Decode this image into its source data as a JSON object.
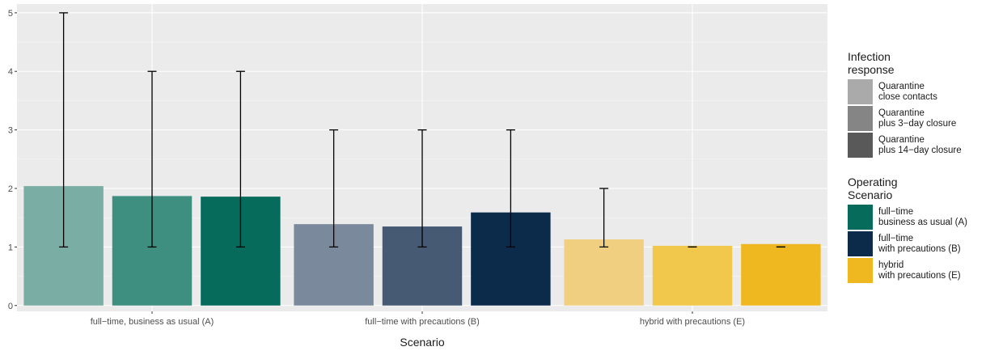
{
  "chart_data": {
    "type": "bar",
    "xlabel": "Scenario",
    "ylabel": "",
    "ylim": [
      -0.1,
      5.15
    ],
    "yticks": [
      0,
      1,
      2,
      3,
      4,
      5
    ],
    "grid": true,
    "legend_position": "right",
    "categories": [
      "full−time, business as usual (A)",
      "full−time with precautions (B)",
      "hybrid with precautions (E)"
    ],
    "bars": [
      {
        "category": 0,
        "slot": 0,
        "value": 2.04,
        "err_low": 1,
        "err_high": 5,
        "color": "#7aada4"
      },
      {
        "category": 0,
        "slot": 1,
        "value": 1.87,
        "err_low": 1,
        "err_high": 4,
        "color": "#3e8f80"
      },
      {
        "category": 0,
        "slot": 2,
        "value": 1.86,
        "err_low": 1,
        "err_high": 4,
        "color": "#076b5c"
      },
      {
        "category": 1,
        "slot": 0,
        "value": 1.39,
        "err_low": 1,
        "err_high": 3,
        "color": "#7a8a9c"
      },
      {
        "category": 1,
        "slot": 1,
        "value": 1.35,
        "err_low": 1,
        "err_high": 3,
        "color": "#465a74"
      },
      {
        "category": 1,
        "slot": 2,
        "value": 1.59,
        "err_low": 1,
        "err_high": 3,
        "color": "#0c2b4b"
      },
      {
        "category": 2,
        "slot": 0,
        "value": 1.13,
        "err_low": 1,
        "err_high": 2,
        "color": "#f0d080"
      },
      {
        "category": 2,
        "slot": 1,
        "value": 1.02,
        "err_low": 1,
        "err_high": 1,
        "color": "#f2c84c"
      },
      {
        "category": 2,
        "slot": 2,
        "value": 1.05,
        "err_low": 1,
        "err_high": 1,
        "color": "#efb820"
      }
    ],
    "legend_infection": {
      "title": "Infection\nresponse",
      "items": [
        {
          "label": "Quarantine\nclose contacts",
          "color": "#aaaaaa"
        },
        {
          "label": "Quarantine\nplus 3−day closure",
          "color": "#858585"
        },
        {
          "label": "Quarantine\nplus 14−day closure",
          "color": "#595959"
        }
      ]
    },
    "legend_scenario": {
      "title": "Operating\nScenario",
      "items": [
        {
          "label": "full−time\nbusiness as usual (A)",
          "color": "#076b5c"
        },
        {
          "label": "full−time\nwith precautions (B)",
          "color": "#0c2b4b"
        },
        {
          "label": "hybrid\nwith precautions (E)",
          "color": "#efb820"
        }
      ]
    }
  }
}
